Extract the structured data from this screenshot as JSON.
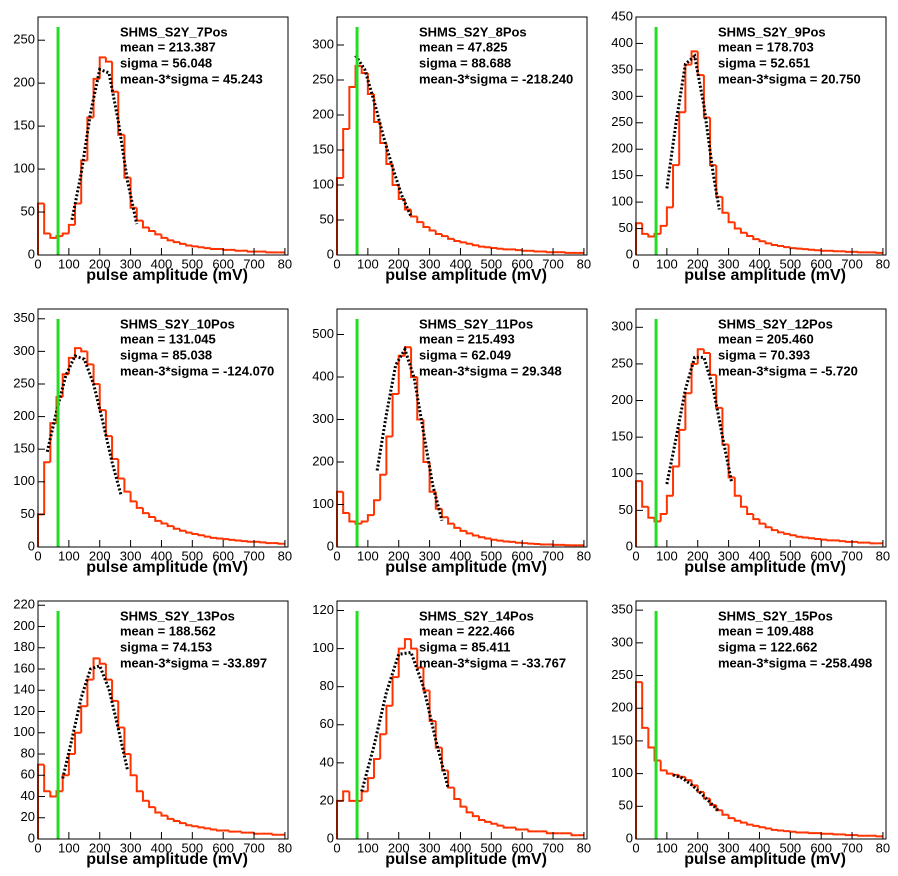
{
  "chart_data": [
    {
      "type": "histogram",
      "title": "SHMS_S2Y_7Pos",
      "stats": [
        "mean = 213.387",
        "sigma = 56.048",
        "mean-3*sigma = 45.243"
      ],
      "xlabel": "pulse amplitude (mV)",
      "color": "#ff3300",
      "bins": [
        0,
        20,
        40,
        60,
        80,
        100,
        120,
        140,
        160,
        180,
        200,
        220,
        240,
        260,
        280,
        300,
        320,
        340,
        360,
        380,
        400,
        420,
        440,
        460,
        480,
        500,
        520,
        540,
        560,
        580,
        600,
        620,
        640,
        660,
        680,
        700,
        720,
        740,
        760,
        780,
        800
      ],
      "values": [
        60,
        25,
        20,
        22,
        25,
        35,
        60,
        110,
        160,
        205,
        230,
        225,
        190,
        140,
        90,
        55,
        40,
        32,
        28,
        24,
        20,
        17,
        15,
        13,
        11,
        10,
        9,
        8,
        7,
        7,
        6,
        6,
        5,
        5,
        4,
        4,
        4,
        3,
        3,
        3
      ],
      "fit": {
        "x": [
          110,
          140,
          170,
          200,
          230,
          260,
          290,
          320
        ],
        "values": [
          41,
          95,
          165,
          216,
          212,
          156,
          86,
          36
        ],
        "color": "#000000"
      },
      "vline": 65,
      "vline_color": "#22dd22",
      "xlim": [
        0,
        810
      ],
      "xticks": [
        0,
        100,
        200,
        300,
        400,
        500,
        600,
        700,
        {
          "value": 800,
          "label": "80"
        }
      ],
      "ylim": [
        0,
        277
      ],
      "yticks": [
        0,
        50,
        100,
        150,
        200,
        250
      ]
    },
    {
      "type": "histogram",
      "title": "SHMS_S2Y_8Pos",
      "stats": [
        "mean = 47.825",
        "sigma = 88.688",
        "mean-3*sigma = -218.240"
      ],
      "xlabel": "pulse amplitude (mV)",
      "color": "#ff3300",
      "bins": [
        0,
        20,
        40,
        60,
        80,
        100,
        120,
        140,
        160,
        180,
        200,
        220,
        240,
        260,
        280,
        300,
        320,
        340,
        360,
        380,
        400,
        420,
        440,
        460,
        480,
        500,
        520,
        540,
        560,
        580,
        600,
        620,
        640,
        660,
        680,
        700,
        720,
        740,
        760,
        780,
        800
      ],
      "values": [
        110,
        180,
        240,
        270,
        260,
        230,
        190,
        160,
        130,
        100,
        80,
        65,
        55,
        47,
        40,
        35,
        30,
        27,
        23,
        20,
        18,
        16,
        14,
        12,
        11,
        10,
        9,
        8,
        8,
        7,
        6,
        6,
        5,
        5,
        4,
        4,
        4,
        3,
        3,
        3
      ],
      "fit": {
        "x": [
          60,
          90,
          120,
          150,
          180,
          210,
          240
        ],
        "values": [
          285,
          265,
          220,
          170,
          125,
          85,
          55
        ],
        "color": "#000000"
      },
      "vline": 65,
      "vline_color": "#22dd22",
      "xlim": [
        0,
        810
      ],
      "xticks": [
        0,
        100,
        200,
        300,
        400,
        500,
        600,
        700,
        {
          "value": 800,
          "label": "80"
        }
      ],
      "ylim": [
        0,
        340
      ],
      "yticks": [
        0,
        50,
        100,
        150,
        200,
        250,
        300
      ]
    },
    {
      "type": "histogram",
      "title": "SHMS_S2Y_9Pos",
      "stats": [
        "mean = 178.703",
        "sigma = 52.651",
        "mean-3*sigma = 20.750"
      ],
      "xlabel": "pulse amplitude (mV)",
      "color": "#ff3300",
      "bins": [
        0,
        20,
        40,
        60,
        80,
        100,
        120,
        140,
        160,
        180,
        200,
        220,
        240,
        260,
        280,
        300,
        320,
        340,
        360,
        380,
        400,
        420,
        440,
        460,
        480,
        500,
        520,
        540,
        560,
        580,
        600,
        620,
        640,
        660,
        680,
        700,
        720,
        740,
        760,
        780,
        800
      ],
      "values": [
        60,
        40,
        35,
        40,
        55,
        90,
        170,
        270,
        360,
        385,
        340,
        260,
        170,
        110,
        80,
        62,
        50,
        42,
        36,
        30,
        26,
        22,
        19,
        17,
        15,
        13,
        12,
        11,
        10,
        9,
        8,
        8,
        7,
        7,
        6,
        6,
        5,
        5,
        5,
        4
      ],
      "fit": {
        "x": [
          100,
          130,
          160,
          190,
          220,
          250,
          270
        ],
        "values": [
          126,
          251,
          361,
          376,
          283,
          154,
          86
        ],
        "color": "#000000"
      },
      "vline": 65,
      "vline_color": "#22dd22",
      "xlim": [
        0,
        810
      ],
      "xticks": [
        0,
        100,
        200,
        300,
        400,
        500,
        600,
        700,
        {
          "value": 800,
          "label": "80"
        }
      ],
      "ylim": [
        0,
        450
      ],
      "yticks": [
        0,
        50,
        100,
        150,
        200,
        250,
        300,
        350,
        400,
        450
      ]
    },
    {
      "type": "histogram",
      "title": "SHMS_S2Y_10Pos",
      "stats": [
        "mean = 131.045",
        "sigma = 85.038",
        "mean-3*sigma = -124.070"
      ],
      "xlabel": "pulse amplitude (mV)",
      "color": "#ff3300",
      "bins": [
        0,
        20,
        40,
        60,
        80,
        100,
        120,
        140,
        160,
        180,
        200,
        220,
        240,
        260,
        280,
        300,
        320,
        340,
        360,
        380,
        400,
        420,
        440,
        460,
        480,
        500,
        520,
        540,
        560,
        580,
        600,
        620,
        640,
        660,
        680,
        700,
        720,
        740,
        760,
        780,
        800
      ],
      "values": [
        50,
        130,
        190,
        230,
        265,
        290,
        305,
        300,
        280,
        250,
        210,
        170,
        135,
        105,
        85,
        70,
        60,
        52,
        46,
        40,
        36,
        32,
        28,
        25,
        22,
        20,
        18,
        16,
        14,
        13,
        12,
        11,
        10,
        9,
        8,
        8,
        7,
        6,
        6,
        5
      ],
      "fit": {
        "x": [
          30,
          60,
          90,
          120,
          150,
          180,
          210,
          240,
          270
        ],
        "values": [
          146,
          208,
          263,
          293,
          288,
          250,
          192,
          130,
          78
        ],
        "color": "#000000"
      },
      "vline": 65,
      "vline_color": "#22dd22",
      "xlim": [
        0,
        810
      ],
      "xticks": [
        0,
        100,
        200,
        300,
        400,
        500,
        600,
        700,
        {
          "value": 800,
          "label": "80"
        }
      ],
      "ylim": [
        0,
        365
      ],
      "yticks": [
        0,
        50,
        100,
        150,
        200,
        250,
        300,
        350
      ]
    },
    {
      "type": "histogram",
      "title": "SHMS_S2Y_11Pos",
      "stats": [
        "mean = 215.493",
        "sigma = 62.049",
        "mean-3*sigma = 29.348"
      ],
      "xlabel": "pulse amplitude (mV)",
      "color": "#ff3300",
      "bins": [
        0,
        20,
        40,
        60,
        80,
        100,
        120,
        140,
        160,
        180,
        200,
        220,
        240,
        260,
        280,
        300,
        320,
        340,
        360,
        380,
        400,
        420,
        440,
        460,
        480,
        500,
        520,
        540,
        560,
        580,
        600,
        620,
        640,
        660,
        680,
        700,
        720,
        740,
        760,
        780,
        800
      ],
      "values": [
        130,
        80,
        60,
        55,
        60,
        75,
        110,
        170,
        260,
        360,
        450,
        470,
        400,
        300,
        200,
        130,
        90,
        70,
        55,
        45,
        38,
        32,
        27,
        23,
        20,
        17,
        15,
        13,
        12,
        10,
        9,
        8,
        7,
        6,
        6,
        5,
        5,
        4,
        4,
        4
      ],
      "fit": {
        "x": [
          130,
          160,
          190,
          220,
          250,
          280,
          310,
          340
        ],
        "values": [
          180,
          312,
          428,
          465,
          398,
          271,
          146,
          62
        ],
        "color": "#000000"
      },
      "vline": 65,
      "vline_color": "#22dd22",
      "xlim": [
        0,
        810
      ],
      "xticks": [
        0,
        100,
        200,
        300,
        400,
        500,
        600,
        700,
        {
          "value": 800,
          "label": "80"
        }
      ],
      "ylim": [
        0,
        560
      ],
      "yticks": [
        0,
        100,
        200,
        300,
        400,
        500
      ]
    },
    {
      "type": "histogram",
      "title": "SHMS_S2Y_12Pos",
      "stats": [
        "mean = 205.460",
        "sigma = 70.393",
        "mean-3*sigma = -5.720"
      ],
      "xlabel": "pulse amplitude (mV)",
      "color": "#ff3300",
      "bins": [
        0,
        20,
        40,
        60,
        80,
        100,
        120,
        140,
        160,
        180,
        200,
        220,
        240,
        260,
        280,
        300,
        320,
        340,
        360,
        380,
        400,
        420,
        440,
        460,
        480,
        500,
        520,
        540,
        560,
        580,
        600,
        620,
        640,
        660,
        680,
        700,
        720,
        740,
        760,
        780,
        800
      ],
      "values": [
        90,
        55,
        40,
        35,
        45,
        70,
        110,
        160,
        210,
        250,
        270,
        265,
        235,
        190,
        140,
        95,
        70,
        55,
        45,
        38,
        32,
        27,
        23,
        20,
        18,
        16,
        14,
        13,
        12,
        11,
        10,
        9,
        9,
        8,
        7,
        7,
        6,
        6,
        5,
        5
      ],
      "fit": {
        "x": [
          100,
          130,
          160,
          190,
          220,
          250,
          280,
          310
        ],
        "values": [
          86,
          149,
          215,
          259,
          259,
          217,
          151,
          88
        ],
        "color": "#000000"
      },
      "vline": 65,
      "vline_color": "#22dd22",
      "xlim": [
        0,
        810
      ],
      "xticks": [
        0,
        100,
        200,
        300,
        400,
        500,
        600,
        700,
        {
          "value": 800,
          "label": "80"
        }
      ],
      "ylim": [
        0,
        325
      ],
      "yticks": [
        0,
        50,
        100,
        150,
        200,
        250,
        300
      ]
    },
    {
      "type": "histogram",
      "title": "SHMS_S2Y_13Pos",
      "stats": [
        "mean = 188.562",
        "sigma = 74.153",
        "mean-3*sigma = -33.897"
      ],
      "xlabel": "pulse amplitude (mV)",
      "color": "#ff3300",
      "bins": [
        0,
        20,
        40,
        60,
        80,
        100,
        120,
        140,
        160,
        180,
        200,
        220,
        240,
        260,
        280,
        300,
        320,
        340,
        360,
        380,
        400,
        420,
        440,
        460,
        480,
        500,
        520,
        540,
        560,
        580,
        600,
        620,
        640,
        660,
        680,
        700,
        720,
        740,
        760,
        780,
        800
      ],
      "values": [
        70,
        45,
        40,
        45,
        60,
        80,
        100,
        125,
        150,
        170,
        165,
        150,
        130,
        105,
        80,
        60,
        45,
        36,
        30,
        25,
        22,
        19,
        17,
        15,
        13,
        12,
        11,
        10,
        9,
        8,
        8,
        7,
        7,
        6,
        6,
        5,
        5,
        5,
        4,
        4
      ],
      "fit": {
        "x": [
          80,
          110,
          140,
          170,
          200,
          230,
          260,
          290
        ],
        "values": [
          57,
          94,
          133,
          160,
          163,
          141,
          104,
          65
        ],
        "color": "#000000"
      },
      "vline": 65,
      "vline_color": "#22dd22",
      "xlim": [
        0,
        810
      ],
      "xticks": [
        0,
        100,
        200,
        300,
        400,
        500,
        600,
        700,
        {
          "value": 800,
          "label": "80"
        }
      ],
      "ylim": [
        0,
        224
      ],
      "yticks": [
        0,
        20,
        40,
        60,
        80,
        100,
        120,
        140,
        160,
        180,
        200,
        220
      ]
    },
    {
      "type": "histogram",
      "title": "SHMS_S2Y_14Pos",
      "stats": [
        "mean = 222.466",
        "sigma = 85.411",
        "mean-3*sigma = -33.767"
      ],
      "xlabel": "pulse amplitude (mV)",
      "color": "#ff3300",
      "bins": [
        0,
        20,
        40,
        60,
        80,
        100,
        120,
        140,
        160,
        180,
        200,
        220,
        240,
        260,
        280,
        300,
        320,
        340,
        360,
        380,
        400,
        420,
        440,
        460,
        480,
        500,
        520,
        540,
        560,
        580,
        600,
        620,
        640,
        660,
        680,
        700,
        720,
        740,
        760,
        780,
        800
      ],
      "values": [
        20,
        25,
        20,
        20,
        25,
        32,
        42,
        55,
        70,
        85,
        100,
        105,
        100,
        90,
        78,
        62,
        48,
        36,
        27,
        21,
        17,
        14,
        12,
        10,
        9,
        8,
        7,
        6,
        6,
        5,
        5,
        4,
        4,
        4,
        3,
        3,
        3,
        3,
        2,
        2
      ],
      "fit": {
        "x": [
          80,
          120,
          160,
          200,
          240,
          280,
          320,
          360
        ],
        "values": [
          25,
          49,
          77,
          97,
          98,
          80,
          52,
          27
        ],
        "color": "#000000"
      },
      "vline": 65,
      "vline_color": "#22dd22",
      "xlim": [
        0,
        810
      ],
      "xticks": [
        0,
        100,
        200,
        300,
        400,
        500,
        600,
        700,
        {
          "value": 800,
          "label": "80"
        }
      ],
      "ylim": [
        0,
        125
      ],
      "yticks": [
        0,
        20,
        40,
        60,
        80,
        100,
        120
      ]
    },
    {
      "type": "histogram",
      "title": "SHMS_S2Y_15Pos",
      "stats": [
        "mean = 109.488",
        "sigma = 122.662",
        "mean-3*sigma = -258.498"
      ],
      "xlabel": "pulse amplitude (mV)",
      "color": "#ff3300",
      "bins": [
        0,
        20,
        40,
        60,
        80,
        100,
        120,
        140,
        160,
        180,
        200,
        220,
        240,
        260,
        280,
        300,
        320,
        340,
        360,
        380,
        400,
        420,
        440,
        460,
        480,
        500,
        520,
        540,
        560,
        580,
        600,
        620,
        640,
        660,
        680,
        700,
        720,
        740,
        760,
        780,
        800
      ],
      "values": [
        240,
        170,
        140,
        120,
        105,
        100,
        98,
        95,
        90,
        82,
        72,
        62,
        52,
        44,
        37,
        32,
        28,
        25,
        22,
        20,
        18,
        16,
        14,
        13,
        12,
        11,
        10,
        10,
        9,
        9,
        8,
        8,
        7,
        7,
        6,
        6,
        5,
        5,
        5,
        4
      ],
      "fit": {
        "x": [
          120,
          150,
          180,
          210,
          240,
          270
        ],
        "values": [
          98,
          93,
          83,
          70,
          56,
          42
        ],
        "color": "#000000"
      },
      "vline": 65,
      "vline_color": "#22dd22",
      "xlim": [
        0,
        810
      ],
      "xticks": [
        0,
        100,
        200,
        300,
        400,
        500,
        600,
        700,
        {
          "value": 800,
          "label": "80"
        }
      ],
      "ylim": [
        0,
        364
      ],
      "yticks": [
        0,
        50,
        100,
        150,
        200,
        250,
        300,
        350
      ]
    }
  ]
}
